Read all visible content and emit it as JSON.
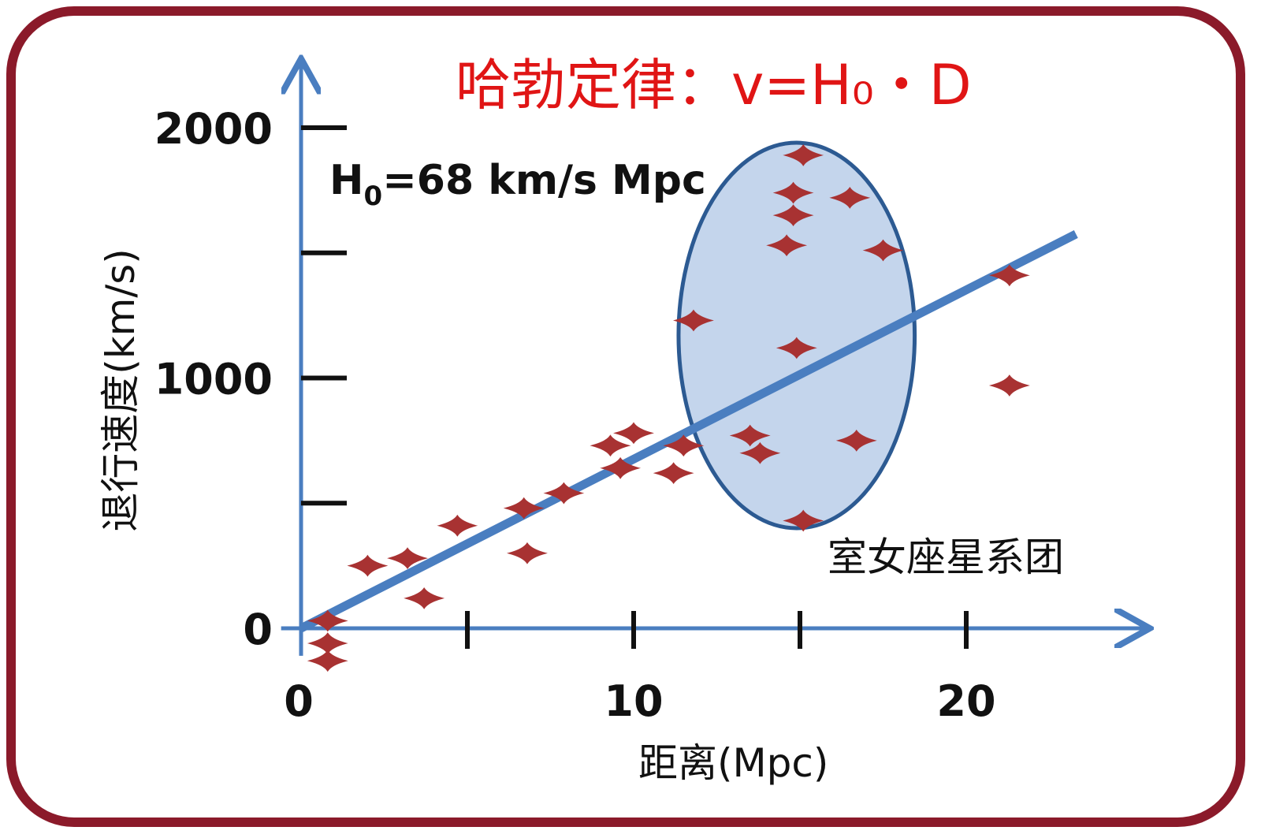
{
  "chart_data": {
    "type": "scatter",
    "title": "哈勃定律：v=H₀・D",
    "xlabel": "距离(Mpc)",
    "ylabel": "退行速度(km/s)",
    "xlim": [
      0,
      25
    ],
    "ylim": [
      -200,
      2300
    ],
    "x_ticks": [
      0,
      5,
      10,
      15,
      20
    ],
    "x_tick_labels": [
      "0",
      "10",
      "20"
    ],
    "x_tick_label_values": [
      0,
      10,
      20
    ],
    "y_ticks": [
      0,
      500,
      1000,
      1500,
      2000
    ],
    "y_tick_labels": [
      "0",
      "1000",
      "2000"
    ],
    "y_tick_label_values": [
      0,
      1000,
      2000
    ],
    "annotation_h0": {
      "prefix": "H",
      "sub": "0",
      "rest": "=68 km/s Mpc"
    },
    "cluster_label": "室女座星系团",
    "cluster_region": {
      "cx": 14.9,
      "cy": 1170,
      "rx": 3.55,
      "ry": 770
    },
    "fit_line": {
      "x": [
        0,
        23.3
      ],
      "y": [
        0,
        1575
      ]
    },
    "colors": {
      "axis": "#4a7ec0",
      "fit": "#4a7ec0",
      "marker": "#a83232",
      "ellipse_fill": "#c4d5ec",
      "ellipse_stroke": "#2c5a92",
      "title": "#e01515",
      "frame": "#8b1a2a"
    },
    "points": [
      {
        "x": 0.8,
        "y": 30
      },
      {
        "x": 0.8,
        "y": -60
      },
      {
        "x": 0.8,
        "y": -130
      },
      {
        "x": 2.0,
        "y": 250
      },
      {
        "x": 3.2,
        "y": 280
      },
      {
        "x": 3.7,
        "y": 120
      },
      {
        "x": 4.7,
        "y": 410
      },
      {
        "x": 6.7,
        "y": 480
      },
      {
        "x": 6.8,
        "y": 300
      },
      {
        "x": 7.9,
        "y": 540
      },
      {
        "x": 9.3,
        "y": 730
      },
      {
        "x": 10.0,
        "y": 780
      },
      {
        "x": 9.6,
        "y": 640
      },
      {
        "x": 11.2,
        "y": 620
      },
      {
        "x": 11.5,
        "y": 730
      },
      {
        "x": 11.8,
        "y": 1230
      },
      {
        "x": 13.5,
        "y": 770
      },
      {
        "x": 13.8,
        "y": 700
      },
      {
        "x": 14.9,
        "y": 1120
      },
      {
        "x": 14.6,
        "y": 1530
      },
      {
        "x": 14.8,
        "y": 1650
      },
      {
        "x": 14.8,
        "y": 1740
      },
      {
        "x": 15.1,
        "y": 1890
      },
      {
        "x": 16.5,
        "y": 1720
      },
      {
        "x": 17.5,
        "y": 1510
      },
      {
        "x": 16.7,
        "y": 750
      },
      {
        "x": 15.1,
        "y": 430
      },
      {
        "x": 21.3,
        "y": 1410
      },
      {
        "x": 21.3,
        "y": 970
      }
    ]
  }
}
